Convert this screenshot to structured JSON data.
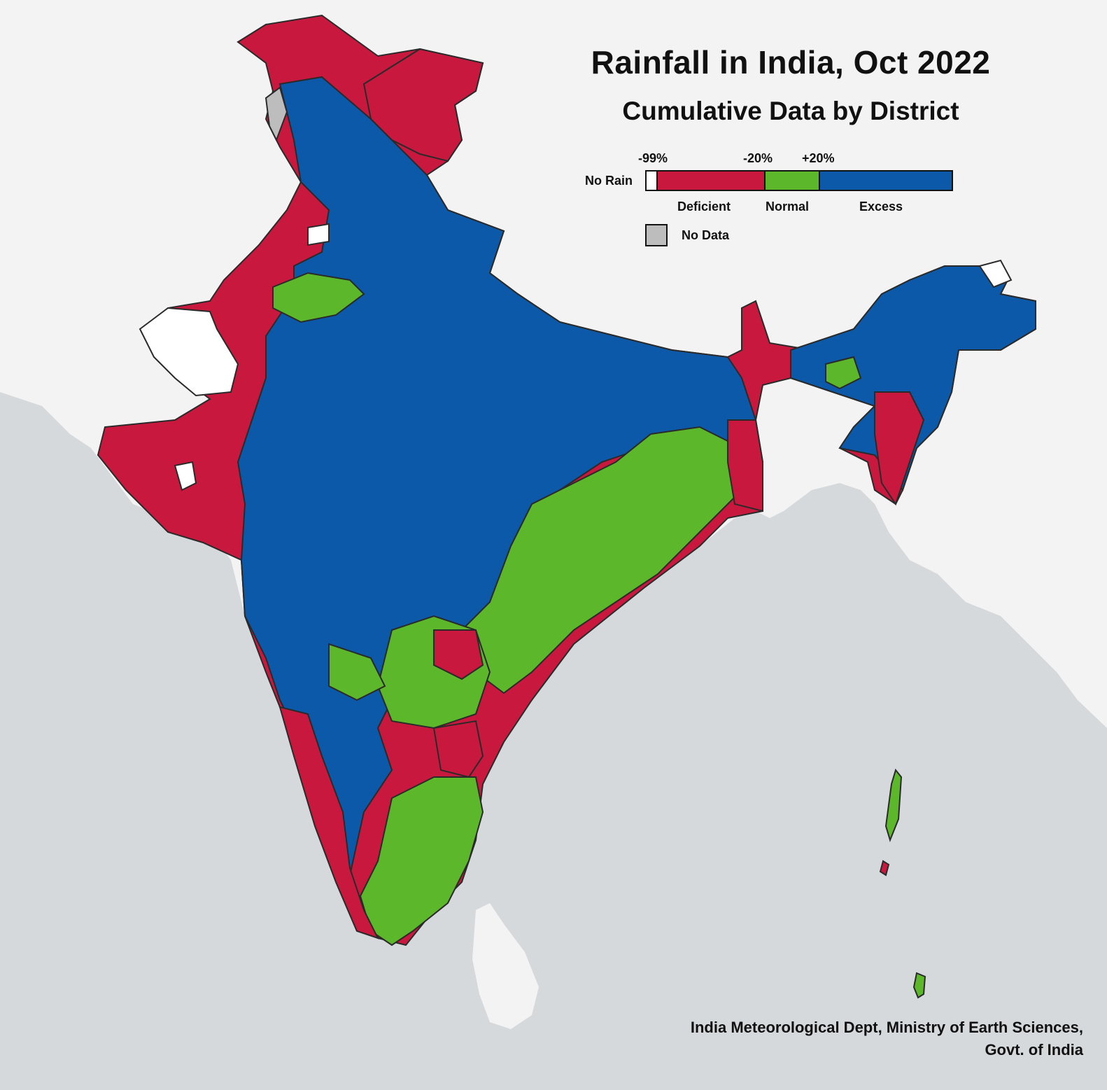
{
  "title": "Rainfall in India, Oct 2022",
  "subtitle": "Cumulative Data by District",
  "legend": {
    "no_rain_label": "No Rain",
    "thresholds": [
      "-99%",
      "-20%",
      "+20%"
    ],
    "categories": [
      {
        "label": "Deficient",
        "range": "-99% to -20%",
        "color": "#c9183e"
      },
      {
        "label": "Normal",
        "range": "-20% to +20%",
        "color": "#5cb82a"
      },
      {
        "label": "Excess",
        "range": "> +20%",
        "color": "#0b59a8"
      }
    ],
    "no_rain_color": "#ffffff",
    "no_data_label": "No Data",
    "no_data_color": "#bdbdbd"
  },
  "source": {
    "line1": "India Meteorological Dept, Ministry of Earth Sciences,",
    "line2": "Govt. of India"
  },
  "colors": {
    "sea": "#d5d9dc",
    "land_outside": "#f3f3f3",
    "border": "#2a2a2a",
    "deficient": "#c9183e",
    "normal": "#5cb82a",
    "excess": "#0b59a8",
    "no_rain": "#ffffff",
    "no_data": "#bdbdbd"
  },
  "regions": {
    "jammu_kashmir_ladakh": "deficient",
    "himachal_uttarakhand_up": "excess",
    "west_rajasthan_gujarat": "deficient",
    "kutch_desert": "no_rain",
    "central_india": "excess",
    "east_chhattisgarh_jharkhand_odisha": "normal",
    "west_coast_kerala": "deficient",
    "tamil_nadu_south": "normal",
    "northeast": "excess",
    "andaman_nicobar": "normal"
  }
}
